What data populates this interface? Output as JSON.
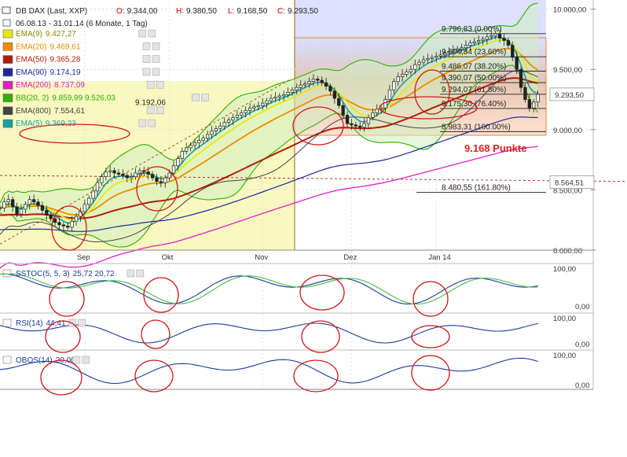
{
  "header": {
    "title": "DB DAX (Last, XXP)",
    "ohlc": [
      {
        "label": "O:",
        "value": "9.344,00"
      },
      {
        "label": "H:",
        "value": "9.380,50"
      },
      {
        "label": "L:",
        "value": "9.168,50"
      },
      {
        "label": "C:",
        "value": "9.293,50"
      }
    ],
    "range": "06.08.13 - 31.01.14 (6 Monate, 1 Tag)"
  },
  "legend": [
    {
      "name": "EMA(9)",
      "value": "9.427,27",
      "color": "#e8e800",
      "marked": false
    },
    {
      "name": "EMA(20)",
      "value": "9.469,61",
      "color": "#f08c00",
      "marked": false
    },
    {
      "name": "EMA(50)",
      "value": "9.365,28",
      "color": "#b01e0a",
      "marked": false
    },
    {
      "name": "EMA(90)",
      "value": "9.174,19",
      "color": "#1a2a9c",
      "marked": true
    },
    {
      "name": "EMA(200)",
      "value": "8.737,09",
      "color": "#e020c8",
      "marked": false
    },
    {
      "name": "BB(20, 2)",
      "value": "9.859,99  9.526,03",
      "value2": "9.192,06",
      "color": "#30b000",
      "marked": false
    },
    {
      "name": "EMA(800)",
      "value": "7.554,61",
      "color": "#444444",
      "marked": false
    },
    {
      "name": "EMA(5)",
      "value": "9.369,23",
      "color": "#1aa0a0",
      "marked": false
    }
  ],
  "fibonacci": [
    {
      "label": "9.796,83 (0.00%)",
      "value": 9796.83
    },
    {
      "label": "9.604,84 (23.60%)",
      "value": 9604.84
    },
    {
      "label": "9.486,07 (38.20%)",
      "value": 9486.07
    },
    {
      "label": "9.390,07 (50.00%)",
      "value": 9390.07
    },
    {
      "label": "9.294,07 (61.80%)",
      "value": 9294.07
    },
    {
      "label": "9.175,30 (76.40%)",
      "value": 9175.3
    },
    {
      "label": "8.983,31 (100.00%)",
      "value": 8983.31
    },
    {
      "label": "8.480,55 (161.80%)",
      "value": 8480.55
    }
  ],
  "annotation": "9.168 Punkte",
  "price_tags": [
    {
      "label": "9.293,50",
      "value": 9293.5
    },
    {
      "label": "8.564,51",
      "value": 8564.51
    }
  ],
  "indicators": [
    {
      "name": "SSTOC(5, 5, 3)",
      "values": "25,72  20,72"
    },
    {
      "name": "RSI(14)",
      "values": "44,41"
    },
    {
      "name": "OBOS(14)",
      "values": "20,00"
    }
  ],
  "chart_data": {
    "type": "line",
    "y_tick_labels": [
      "10.000,00",
      "9.500,00",
      "9.000,00",
      "8.500,00",
      "8.000,00"
    ],
    "y_ticks": [
      10000,
      9500,
      9000,
      8500,
      8000
    ],
    "ylim": [
      8000,
      10050
    ],
    "x_tick_labels": [
      "Sep",
      "Okt",
      "Nov",
      "Dez",
      "Jan 14"
    ],
    "x_ticks_day": [
      20,
      40,
      62,
      83,
      103
    ],
    "x_range": [
      0,
      128
    ],
    "sub_y_ticks": [
      {
        "labels": [
          "100,00",
          "0,00"
        ]
      },
      {
        "labels": [
          "100,00",
          "0,00"
        ]
      },
      {
        "labels": [
          "100,00",
          "0,00"
        ]
      }
    ],
    "series": [
      {
        "name": "DB DAX (Last, XXP)",
        "values": [
          8350,
          8400,
          8420,
          8360,
          8300,
          8340,
          8380,
          8420,
          8400,
          8370,
          8330,
          8290,
          8260,
          8230,
          8210,
          8200,
          8190,
          8240,
          8280,
          8320,
          8380,
          8430,
          8490,
          8560,
          8610,
          8650,
          8660,
          8640,
          8630,
          8620,
          8600,
          8610,
          8640,
          8660,
          8650,
          8630,
          8600,
          8570,
          8560,
          8600,
          8640,
          8700,
          8760,
          8820,
          8850,
          8870,
          8890,
          8910,
          8930,
          8960,
          8990,
          9010,
          9030,
          9060,
          9080,
          9100,
          9120,
          9140,
          9160,
          9180,
          9190,
          9200,
          9220,
          9240,
          9260,
          9270,
          9280,
          9290,
          9310,
          9330,
          9350,
          9370,
          9380,
          9400,
          9420,
          9410,
          9390,
          9360,
          9320,
          9260,
          9200,
          9120,
          9050,
          9040,
          9030,
          9020,
          9050,
          9100,
          9140,
          9170,
          9180,
          9250,
          9330,
          9400,
          9440,
          9460,
          9480,
          9500,
          9540,
          9560,
          9580,
          9590,
          9600,
          9610,
          9620,
          9640,
          9650,
          9660,
          9670,
          9680,
          9700,
          9720,
          9730,
          9740,
          9750,
          9770,
          9780,
          9796,
          9760,
          9740,
          9700,
          9600,
          9500,
          9350,
          9250,
          9180,
          9230,
          9293.5
        ]
      }
    ]
  }
}
